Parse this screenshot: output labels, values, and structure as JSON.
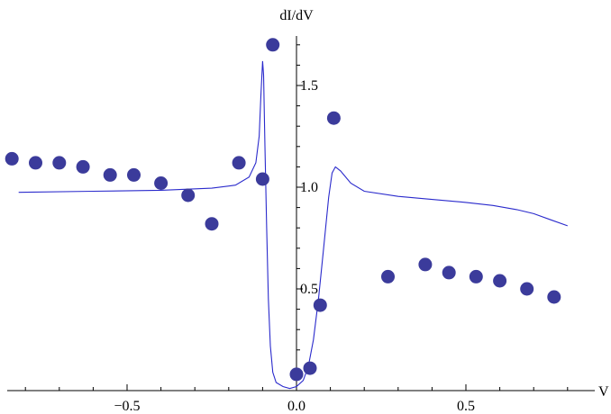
{
  "chart_data": {
    "type": "scatter",
    "xlabel": "V",
    "ylabel": "dI/dV",
    "xlim": [
      -0.85,
      0.8
    ],
    "ylim": [
      0.0,
      1.74
    ],
    "x_ticks": [
      {
        "value": -0.5,
        "label": "−0.5"
      },
      {
        "value": 0.0,
        "label": "0.0"
      },
      {
        "value": 0.5,
        "label": "0.5"
      }
    ],
    "y_ticks": [
      {
        "value": 0.5,
        "label": "0.5"
      },
      {
        "value": 1.0,
        "label": "1.0"
      },
      {
        "value": 1.5,
        "label": "1.5"
      }
    ],
    "grid": false,
    "series": [
      {
        "kind": "scatter",
        "color": "#3b3b9b",
        "points": [
          [
            -0.84,
            1.14
          ],
          [
            -0.77,
            1.12
          ],
          [
            -0.7,
            1.12
          ],
          [
            -0.63,
            1.1
          ],
          [
            -0.55,
            1.06
          ],
          [
            -0.48,
            1.06
          ],
          [
            -0.4,
            1.02
          ],
          [
            -0.32,
            0.96
          ],
          [
            -0.25,
            0.82
          ],
          [
            -0.17,
            1.12
          ],
          [
            -0.1,
            1.04
          ],
          [
            -0.07,
            1.7
          ],
          [
            0.0,
            0.08
          ],
          [
            0.04,
            0.11
          ],
          [
            0.07,
            0.42
          ],
          [
            0.11,
            1.34
          ],
          [
            0.27,
            0.56
          ],
          [
            0.38,
            0.62
          ],
          [
            0.45,
            0.58
          ],
          [
            0.53,
            0.56
          ],
          [
            0.6,
            0.54
          ],
          [
            0.68,
            0.5
          ],
          [
            0.76,
            0.46
          ]
        ]
      },
      {
        "kind": "line",
        "color": "#2a2acc",
        "points": [
          [
            -0.82,
            0.975
          ],
          [
            -0.6,
            0.98
          ],
          [
            -0.4,
            0.985
          ],
          [
            -0.25,
            0.995
          ],
          [
            -0.18,
            1.01
          ],
          [
            -0.14,
            1.05
          ],
          [
            -0.12,
            1.12
          ],
          [
            -0.11,
            1.25
          ],
          [
            -0.105,
            1.45
          ],
          [
            -0.1,
            1.62
          ],
          [
            -0.097,
            1.55
          ],
          [
            -0.093,
            1.2
          ],
          [
            -0.088,
            0.8
          ],
          [
            -0.083,
            0.45
          ],
          [
            -0.077,
            0.22
          ],
          [
            -0.07,
            0.09
          ],
          [
            -0.06,
            0.04
          ],
          [
            -0.04,
            0.02
          ],
          [
            -0.02,
            0.01
          ],
          [
            0.0,
            0.02
          ],
          [
            0.02,
            0.05
          ],
          [
            0.035,
            0.12
          ],
          [
            0.05,
            0.25
          ],
          [
            0.065,
            0.45
          ],
          [
            0.08,
            0.7
          ],
          [
            0.095,
            0.95
          ],
          [
            0.105,
            1.07
          ],
          [
            0.115,
            1.1
          ],
          [
            0.13,
            1.08
          ],
          [
            0.16,
            1.02
          ],
          [
            0.2,
            0.98
          ],
          [
            0.3,
            0.955
          ],
          [
            0.4,
            0.94
          ],
          [
            0.5,
            0.925
          ],
          [
            0.58,
            0.91
          ],
          [
            0.65,
            0.89
          ],
          [
            0.7,
            0.87
          ],
          [
            0.75,
            0.84
          ],
          [
            0.8,
            0.81
          ]
        ]
      }
    ]
  }
}
